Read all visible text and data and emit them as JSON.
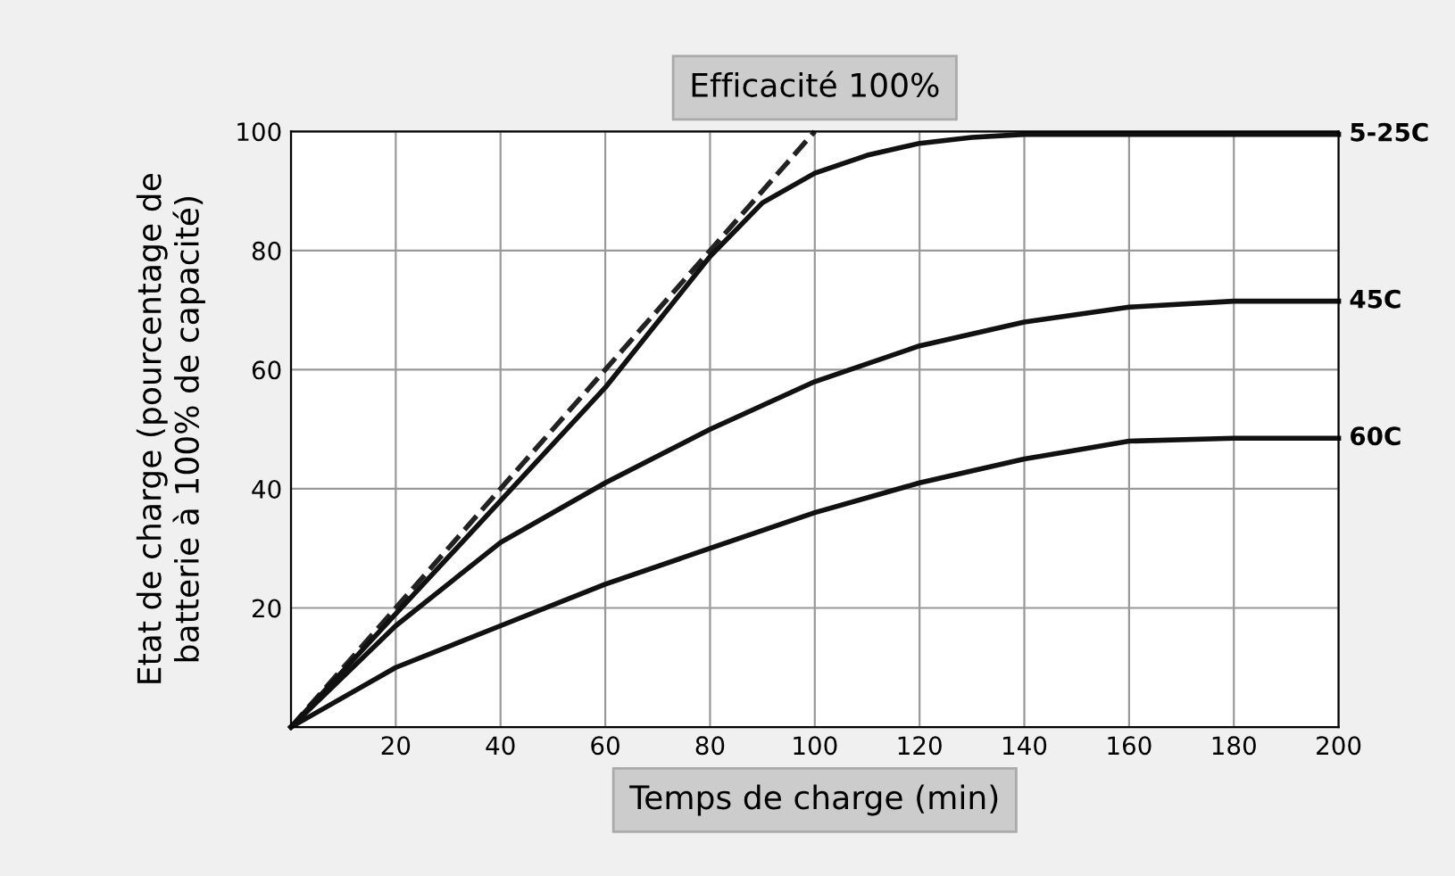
{
  "chart_data": {
    "type": "line",
    "title": "Efficacité 100%",
    "xlabel": "Temps de charge (min)",
    "ylabel": "Etat de charge (pourcentage de\nbatterie à 100% de capacité)",
    "xlim": [
      0,
      200
    ],
    "ylim": [
      0,
      100
    ],
    "xticks": [
      {
        "value": 0,
        "label": null
      },
      20,
      40,
      60,
      80,
      100,
      120,
      140,
      160,
      180,
      200
    ],
    "yticks": [
      {
        "value": 0,
        "label": null
      },
      20,
      40,
      60,
      80,
      100
    ],
    "grid": true,
    "legend": false,
    "series": [
      {
        "name": null,
        "color": "#222222",
        "line_style": "dashed",
        "x": [
          0,
          100
        ],
        "values": [
          0,
          100
        ]
      },
      {
        "name": "5-25C",
        "color": "#111111",
        "line_style": "solid",
        "x": [
          0,
          20,
          40,
          60,
          70,
          80,
          90,
          100,
          110,
          120,
          130,
          140,
          160,
          180,
          200
        ],
        "values": [
          0,
          19,
          38,
          57,
          68,
          79,
          88,
          93,
          96,
          98,
          99,
          99.5,
          99.5,
          99.5,
          99.5
        ]
      },
      {
        "name": "45C",
        "color": "#111111",
        "line_style": "solid",
        "x": [
          0,
          20,
          40,
          60,
          80,
          100,
          120,
          140,
          160,
          180,
          200
        ],
        "values": [
          0,
          17,
          31,
          41,
          50,
          58,
          64,
          68,
          70.5,
          71.5,
          71.5
        ]
      },
      {
        "name": "60C",
        "color": "#111111",
        "line_style": "solid",
        "x": [
          0,
          20,
          40,
          60,
          80,
          100,
          120,
          140,
          160,
          180,
          200
        ],
        "values": [
          0,
          10,
          17,
          24,
          30,
          36,
          41,
          45,
          48,
          48.5,
          48.5
        ]
      }
    ]
  }
}
